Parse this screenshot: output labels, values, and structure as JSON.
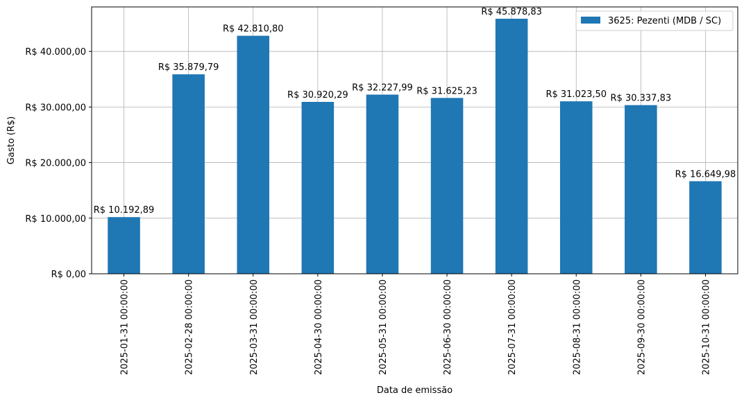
{
  "chart_data": {
    "type": "bar",
    "title": "",
    "xlabel": "Data de emissão",
    "ylabel": "Gasto (R$)",
    "ylim": [
      0,
      48000
    ],
    "grid": true,
    "legend_position": "top-right",
    "bar_color": "#1f77b4",
    "categories": [
      "2025-01-31 00:00:00",
      "2025-02-28 00:00:00",
      "2025-03-31 00:00:00",
      "2025-04-30 00:00:00",
      "2025-05-31 00:00:00",
      "2025-06-30 00:00:00",
      "2025-07-31 00:00:00",
      "2025-08-31 00:00:00",
      "2025-09-30 00:00:00",
      "2025-10-31 00:00:00"
    ],
    "series": [
      {
        "name": "3625: Pezenti (MDB / SC)",
        "values": [
          10192.89,
          35879.79,
          42810.8,
          30920.29,
          32227.99,
          31625.23,
          45878.83,
          31023.5,
          30337.83,
          16649.98
        ]
      }
    ],
    "data_labels": [
      "R$ 10.192,89",
      "R$ 35.879,79",
      "R$ 42.810,80",
      "R$ 30.920,29",
      "R$ 32.227,99",
      "R$ 31.625,23",
      "R$ 45.878,83",
      "R$ 31.023,50",
      "R$ 30.337,83",
      "R$ 16.649,98"
    ],
    "y_ticks": [
      {
        "value": 0,
        "label": "R$ 0,00"
      },
      {
        "value": 10000,
        "label": "R$ 10.000,00"
      },
      {
        "value": 20000,
        "label": "R$ 20.000,00"
      },
      {
        "value": 30000,
        "label": "R$ 30.000,00"
      },
      {
        "value": 40000,
        "label": "R$ 40.000,00"
      }
    ]
  }
}
